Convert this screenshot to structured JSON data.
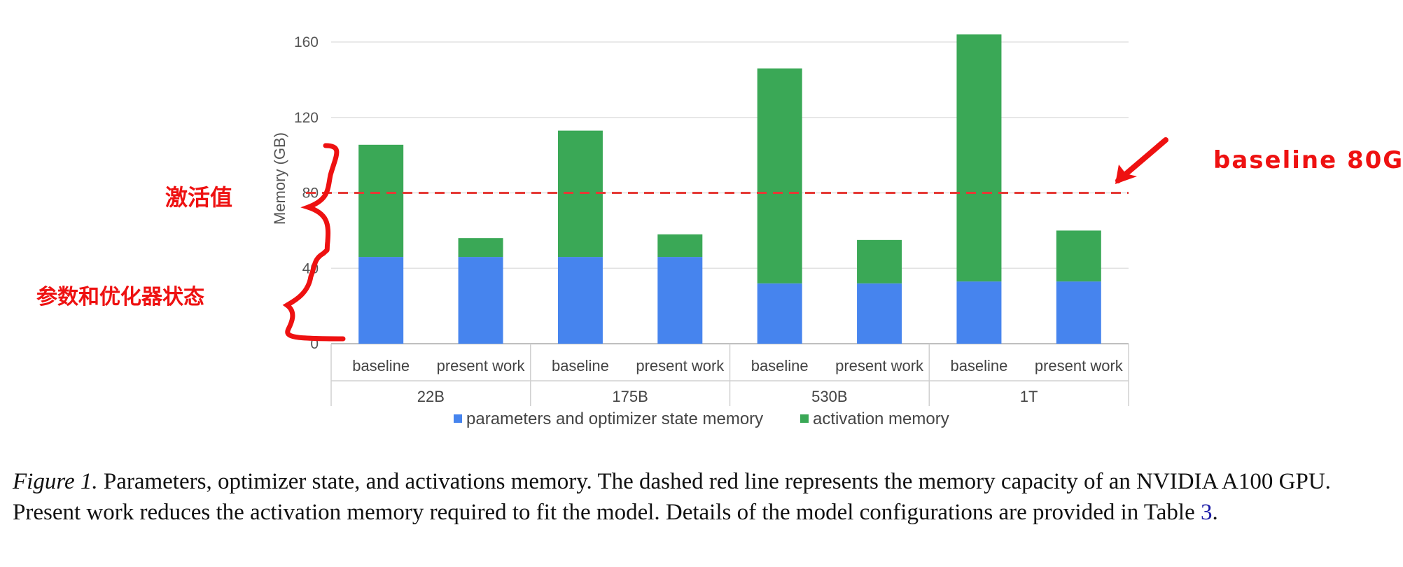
{
  "chart_data": {
    "type": "bar",
    "stacked": true,
    "ylabel": "Memory (GB)",
    "ylim": [
      0,
      170
    ],
    "yticks": [
      0,
      40,
      80,
      120,
      160
    ],
    "grid": true,
    "legend_position": "bottom",
    "groups": [
      "22B",
      "175B",
      "530B",
      "1T"
    ],
    "categories": [
      "baseline",
      "present work",
      "baseline",
      "present work",
      "baseline",
      "present work",
      "baseline",
      "present work"
    ],
    "series": [
      {
        "name": "parameters and optimizer state memory",
        "color": "#4684ee",
        "values": [
          46,
          46,
          46,
          46,
          32,
          32,
          33,
          33
        ]
      },
      {
        "name": "activation memory",
        "color": "#3aa856",
        "values": [
          59.5,
          10,
          67,
          12,
          114,
          23,
          131,
          27
        ]
      }
    ],
    "reference_line": {
      "value": 80,
      "color": "#e53935",
      "style": "dashed"
    }
  },
  "annotations": {
    "right_label": "baseline 80G",
    "activation_label": "激活值",
    "param_label": "参数和优化器状态",
    "color": "#ee1111"
  },
  "caption": {
    "label": "Figure 1.",
    "text": " Parameters, optimizer state, and activations memory. The dashed red line represents the memory capacity of an NVIDIA A100 GPU. Present work reduces the activation memory required to fit the model. Details of the model configurations are provided in Table ",
    "ref": "3",
    "end": "."
  }
}
